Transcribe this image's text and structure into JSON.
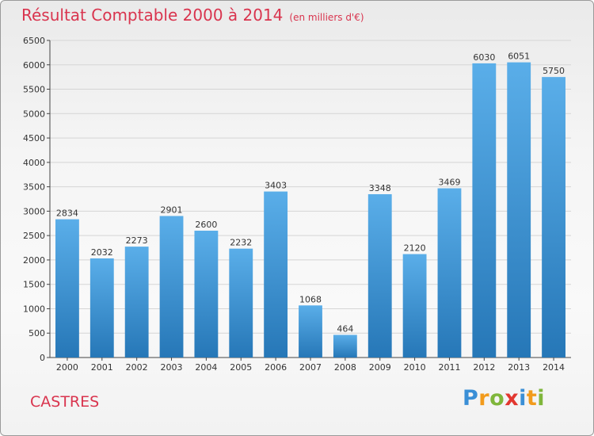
{
  "title": "Résultat Comptable 2000 à 2014",
  "title_unit": "(en milliers d'€)",
  "location": "CASTRES",
  "logo": {
    "letters": [
      "P",
      "r",
      "o",
      "x",
      "i",
      "t",
      "i"
    ],
    "colors": [
      "#3a8fd6",
      "#f29b1c",
      "#7fb63b",
      "#e2372f",
      "#3a8fd6",
      "#f29b1c",
      "#7fb63b"
    ]
  },
  "colors": {
    "title": "#d9344e",
    "bar_top": "#5aaee9",
    "bar_bottom": "#2677b7",
    "grid": "#d5d5d5",
    "axis": "#444444"
  },
  "chart_data": {
    "type": "bar",
    "title": "Résultat Comptable 2000 à 2014",
    "categories": [
      "2000",
      "2001",
      "2002",
      "2003",
      "2004",
      "2005",
      "2006",
      "2007",
      "2008",
      "2009",
      "2010",
      "2011",
      "2012",
      "2013",
      "2014"
    ],
    "values": [
      2834,
      2032,
      2273,
      2901,
      2600,
      2232,
      3403,
      1068,
      464,
      3348,
      2120,
      3469,
      6030,
      6051,
      5750
    ],
    "ylim": [
      0,
      6500
    ],
    "yticks": [
      0,
      500,
      1000,
      1500,
      2000,
      2500,
      3000,
      3500,
      4000,
      4500,
      5000,
      5500,
      6000,
      6500
    ],
    "grid": true,
    "data_labels": true
  }
}
